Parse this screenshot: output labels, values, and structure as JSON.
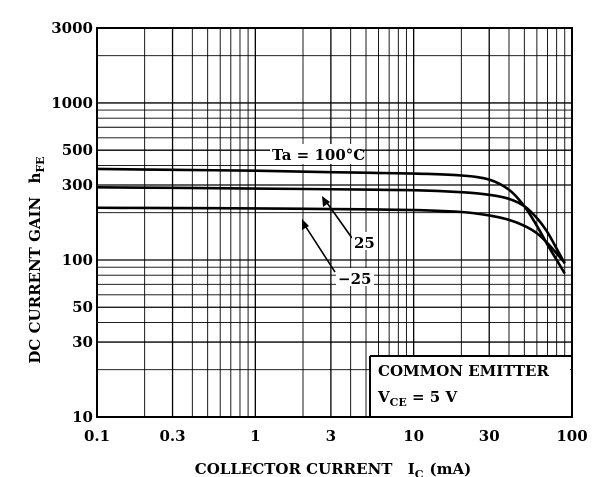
{
  "chart_data": {
    "type": "line",
    "x_scale": "log",
    "y_scale": "log",
    "xlim": [
      0.1,
      100
    ],
    "ylim": [
      10,
      3000
    ],
    "grid": true,
    "x_ticks": [
      {
        "value": 0.1,
        "label": "0.1"
      },
      {
        "value": 0.3,
        "label": "0.3"
      },
      {
        "value": 1,
        "label": "1"
      },
      {
        "value": 3,
        "label": "3"
      },
      {
        "value": 10,
        "label": "10"
      },
      {
        "value": 30,
        "label": "30"
      },
      {
        "value": 100,
        "label": "100"
      }
    ],
    "y_ticks": [
      {
        "value": 10,
        "label": "10"
      },
      {
        "value": 30,
        "label": "30"
      },
      {
        "value": 50,
        "label": "50"
      },
      {
        "value": 100,
        "label": "100"
      },
      {
        "value": 300,
        "label": "300"
      },
      {
        "value": 500,
        "label": "500"
      },
      {
        "value": 1000,
        "label": "1000"
      },
      {
        "value": 3000,
        "label": "3000"
      }
    ],
    "xlabel_main": "COLLECTOR CURRENT",
    "xlabel_symbol": "I",
    "xlabel_sub": "C",
    "xlabel_unit": "(mA)",
    "ylabel_main": "DC CURRENT GAIN",
    "ylabel_symbol": "h",
    "ylabel_sub": "FE",
    "series": [
      {
        "name": "Ta = 100°C",
        "x": [
          0.1,
          0.3,
          1,
          3,
          10,
          20,
          30,
          40,
          50,
          60,
          70,
          80,
          90
        ],
        "y": [
          380,
          375,
          370,
          362,
          355,
          345,
          325,
          280,
          220,
          165,
          125,
          100,
          82
        ]
      },
      {
        "name": "25",
        "x": [
          0.1,
          0.3,
          1,
          3,
          10,
          20,
          30,
          40,
          50,
          60,
          70,
          80,
          90
        ],
        "y": [
          290,
          288,
          285,
          282,
          278,
          270,
          260,
          245,
          220,
          185,
          150,
          118,
          95
        ]
      },
      {
        "name": "−25",
        "x": [
          0.1,
          0.3,
          1,
          3,
          10,
          20,
          30,
          40,
          50,
          60,
          70,
          80,
          90
        ],
        "y": [
          215,
          214,
          213,
          211,
          208,
          202,
          192,
          180,
          165,
          148,
          128,
          110,
          96
        ]
      }
    ],
    "annotations": {
      "ta_label": "Ta = 100°C",
      "label_25": "25",
      "label_m25": "−25",
      "box_line1": "COMMON EMITTER",
      "box_v": "V",
      "box_sub": "CE",
      "box_rest": " = 5 V"
    }
  }
}
